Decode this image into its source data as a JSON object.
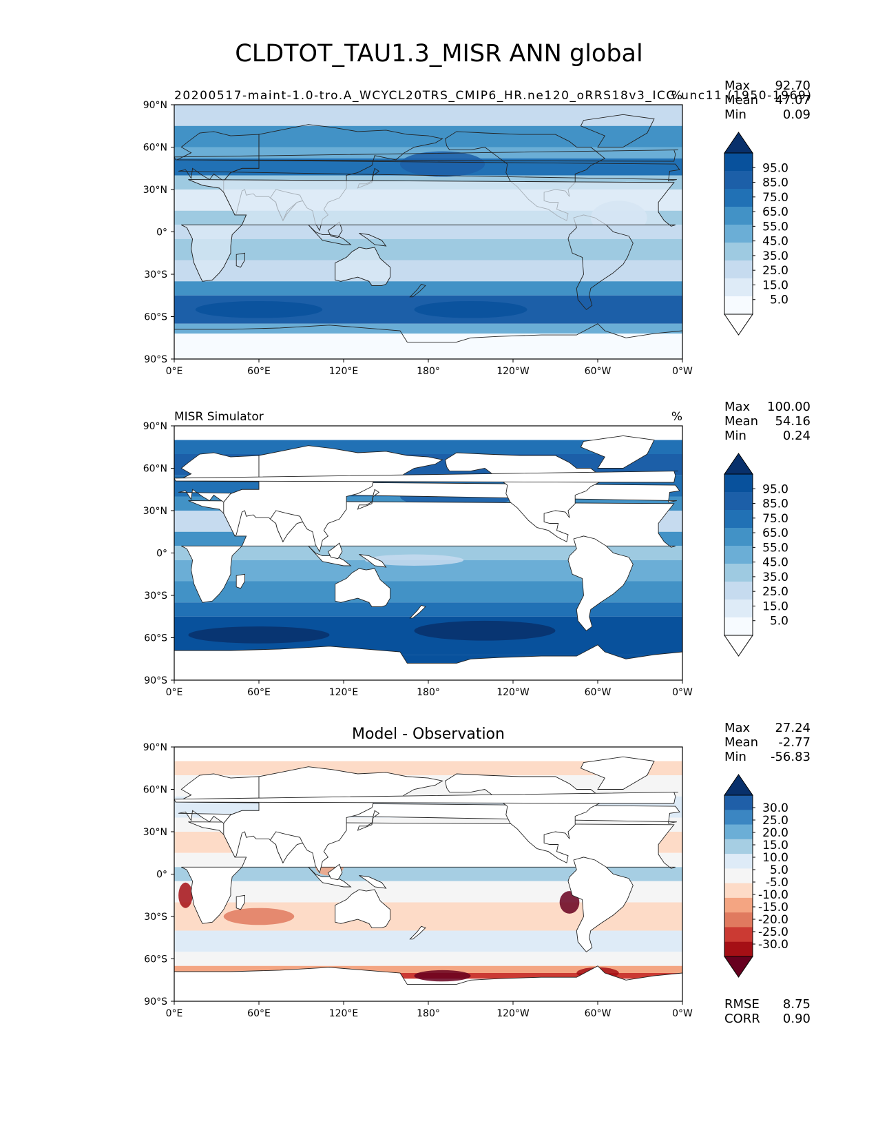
{
  "figure": {
    "title": "CLDTOT_TAU1.3_MISR ANN global"
  },
  "axes": {
    "lat_ticks": [
      "90°N",
      "60°N",
      "30°N",
      "0°",
      "30°S",
      "60°S",
      "90°S"
    ],
    "lon_ticks": [
      "0°E",
      "60°E",
      "120°E",
      "180°",
      "120°W",
      "60°W",
      "0°W"
    ],
    "grid": false
  },
  "panels": [
    {
      "id": "model",
      "left_title": "20200517-maint-1.0-tro.A_WCYCL20TRS_CMIP6_HR.ne120_oRRS18v3_ICG.unc11 (1950-1969)",
      "center_title": "",
      "right_title": "%",
      "stats": [
        {
          "label": "Max",
          "value": "92.70"
        },
        {
          "label": "Mean",
          "value": "47.07"
        },
        {
          "label": "Min",
          "value": "0.09"
        }
      ],
      "colorbar_ticks": [
        "95.0",
        "85.0",
        "75.0",
        "65.0",
        "55.0",
        "45.0",
        "35.0",
        "25.0",
        "15.0",
        "5.0"
      ],
      "colors": [
        "#ffffff",
        "#f7fbff",
        "#deebf7",
        "#c6dbef",
        "#9ecae1",
        "#6baed6",
        "#4292c6",
        "#2171b5",
        "#1c5fa8",
        "#08519c",
        "#08306b"
      ],
      "extra_stats": []
    },
    {
      "id": "obs",
      "left_title": "MISR Simulator",
      "center_title": "",
      "right_title": "%",
      "stats": [
        {
          "label": "Max",
          "value": "100.00"
        },
        {
          "label": "Mean",
          "value": "54.16"
        },
        {
          "label": "Min",
          "value": "0.24"
        }
      ],
      "colorbar_ticks": [
        "95.0",
        "85.0",
        "75.0",
        "65.0",
        "55.0",
        "45.0",
        "35.0",
        "25.0",
        "15.0",
        "5.0"
      ],
      "colors": [
        "#ffffff",
        "#f7fbff",
        "#deebf7",
        "#c6dbef",
        "#9ecae1",
        "#6baed6",
        "#4292c6",
        "#2171b5",
        "#1c5fa8",
        "#08519c",
        "#08306b"
      ],
      "extra_stats": []
    },
    {
      "id": "diff",
      "left_title": "",
      "center_title": "Model - Observation",
      "right_title": "",
      "stats": [
        {
          "label": "Max",
          "value": "27.24"
        },
        {
          "label": "Mean",
          "value": "-2.77"
        },
        {
          "label": "Min",
          "value": "-56.83"
        }
      ],
      "colorbar_ticks": [
        "30.0",
        "25.0",
        "20.0",
        "15.0",
        "10.0",
        "5.0",
        "-5.0",
        "-10.0",
        "-15.0",
        "-20.0",
        "-25.0",
        "-30.0"
      ],
      "colors": [
        "#67001f",
        "#a50f15",
        "#cb3a33",
        "#e07a5f",
        "#f4a582",
        "#fddbc7",
        "#f5f5f5",
        "#deebf7",
        "#a6cee3",
        "#6baed6",
        "#3b86c2",
        "#1f5fa8",
        "#08306b"
      ],
      "extra_stats": [
        {
          "label": "RMSE",
          "value": "8.75"
        },
        {
          "label": "CORR",
          "value": "0.90"
        }
      ]
    }
  ]
}
